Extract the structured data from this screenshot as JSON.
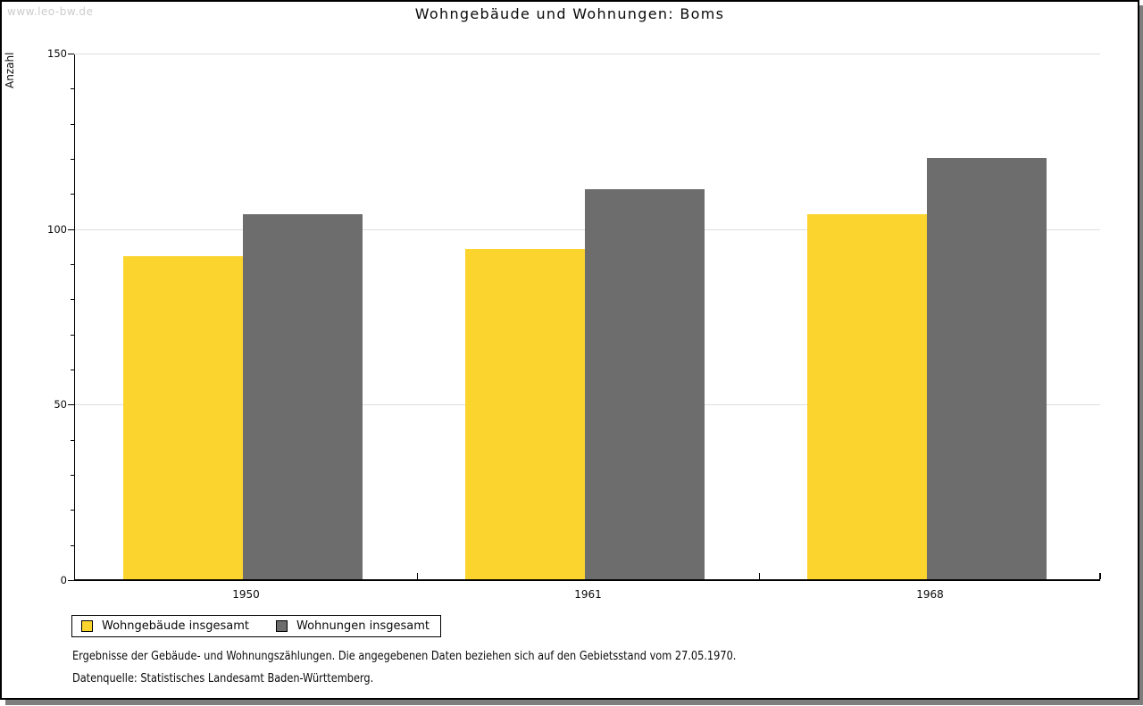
{
  "watermark": "www.leo-bw.de",
  "title": "Wohngebäude und Wohnungen: Boms",
  "chart_data": {
    "type": "bar",
    "title": "Wohngebäude und Wohnungen: Boms",
    "categories": [
      "1950",
      "1961",
      "1968"
    ],
    "series": [
      {
        "name": "Wohngebäude insgesamt",
        "color": "#FCD42E",
        "values": [
          92,
          94,
          104
        ]
      },
      {
        "name": "Wohnungen insgesamt",
        "color": "#6D6D6D",
        "values": [
          104,
          111,
          120
        ]
      }
    ],
    "xlabel": "",
    "ylabel": "Anzahl",
    "ylim": [
      0,
      150
    ],
    "yticks": [
      0,
      50,
      100,
      150
    ],
    "minor_tick_step": 10,
    "grid": "horizontal-at-major-ticks",
    "gridline_color": "#dedede",
    "legend_position": "bottom-left-boxed"
  },
  "footnotes": [
    "Ergebnisse der Gebäude- und Wohnungszählungen. Die angegebenen Daten beziehen sich auf den Gebietsstand vom 27.05.1970.",
    "Datenquelle: Statistisches Landesamt Baden-Württemberg."
  ],
  "colors": {
    "page_background": "#ffffff",
    "page_border": "#000000",
    "page_shadow": "#7e7e7e",
    "watermark_text": "#cccccc",
    "axis": "#000000",
    "text": "#0a0a0a"
  }
}
